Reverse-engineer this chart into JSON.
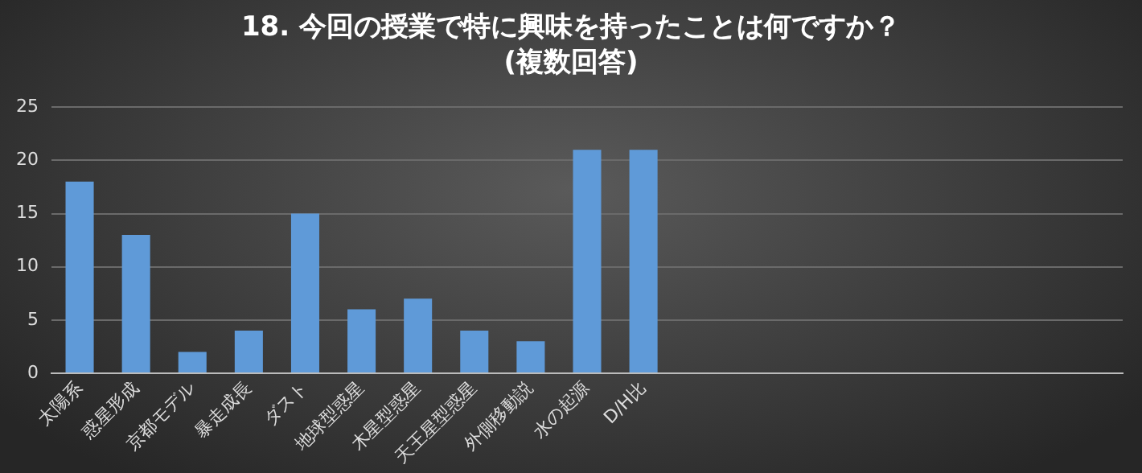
{
  "chart_data": {
    "type": "bar",
    "title": "18. 今回の授業で特に興味を持ったことは何ですか？",
    "subtitle": "(複数回答)",
    "categories": [
      "太陽系",
      "惑星形成",
      "京都モデル",
      "暴走成長",
      "ダスト",
      "地球型惑星",
      "木星型惑星",
      "天王星型惑星",
      "外側移動説",
      "水の起源",
      "D/H比",
      null,
      null,
      null,
      null,
      null,
      null,
      null,
      null
    ],
    "values": [
      18,
      13,
      2,
      4,
      15,
      6,
      7,
      4,
      3,
      21,
      21,
      null,
      null,
      null,
      null,
      null,
      null,
      null,
      null
    ],
    "color": "#5f9ad8",
    "ylim": [
      0,
      25
    ],
    "yticks": [
      0,
      5,
      10,
      15,
      20,
      25
    ],
    "grid": "y",
    "legend": false
  }
}
